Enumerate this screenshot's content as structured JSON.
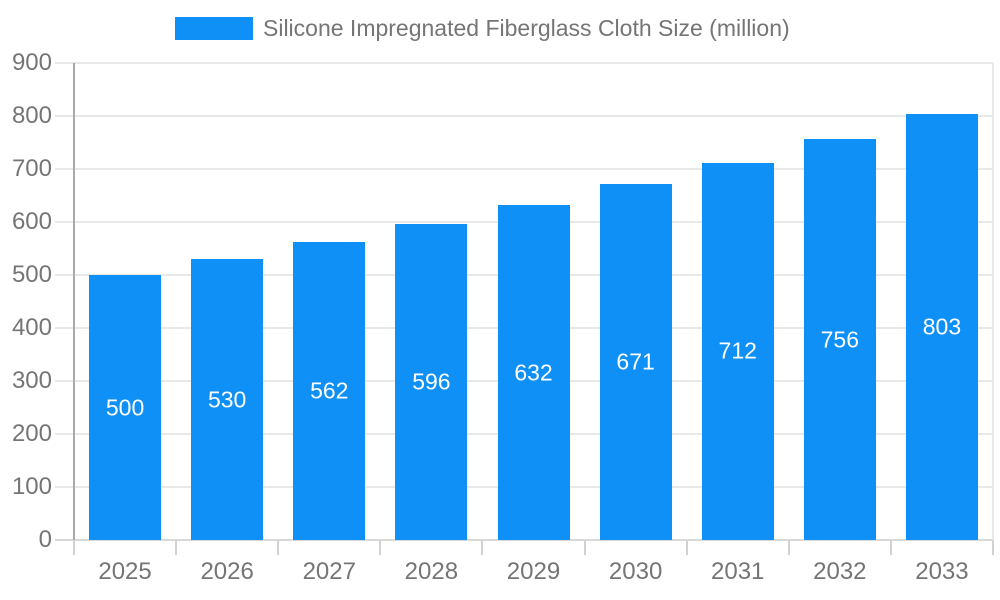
{
  "legend": {
    "label": "Silicone Impregnated Fiberglass Cloth Size (million)",
    "swatch_color": "#0e90f7"
  },
  "chart_data": {
    "type": "bar",
    "title": "Silicone Impregnated Fiberglass Cloth Size (million)",
    "series_name": "Silicone Impregnated Fiberglass Cloth Size (million)",
    "categories": [
      "2025",
      "2026",
      "2027",
      "2028",
      "2029",
      "2030",
      "2031",
      "2032",
      "2033"
    ],
    "values": [
      500,
      530,
      562,
      596,
      632,
      671,
      712,
      756,
      803
    ],
    "bar_value_labels": [
      "500",
      "530",
      "562",
      "596",
      "632",
      "671",
      "712",
      "756",
      "803"
    ],
    "xlabel": "",
    "ylabel": "",
    "ylim": [
      0,
      900
    ],
    "ytick_interval": 100,
    "ytick_labels": [
      "0",
      "100",
      "200",
      "300",
      "400",
      "500",
      "600",
      "700",
      "800",
      "900"
    ],
    "grid": true,
    "legend_position": "top",
    "colors": {
      "bar": "#0e90f7",
      "bar_value_text": "#ffffff",
      "axis_text": "#757575",
      "gridline": "#e8e8e8",
      "axis_line": "#a9a9a9",
      "tick_line": "#d2d2d2",
      "baseline": "#d9d9d9",
      "background": "#ffffff"
    }
  }
}
